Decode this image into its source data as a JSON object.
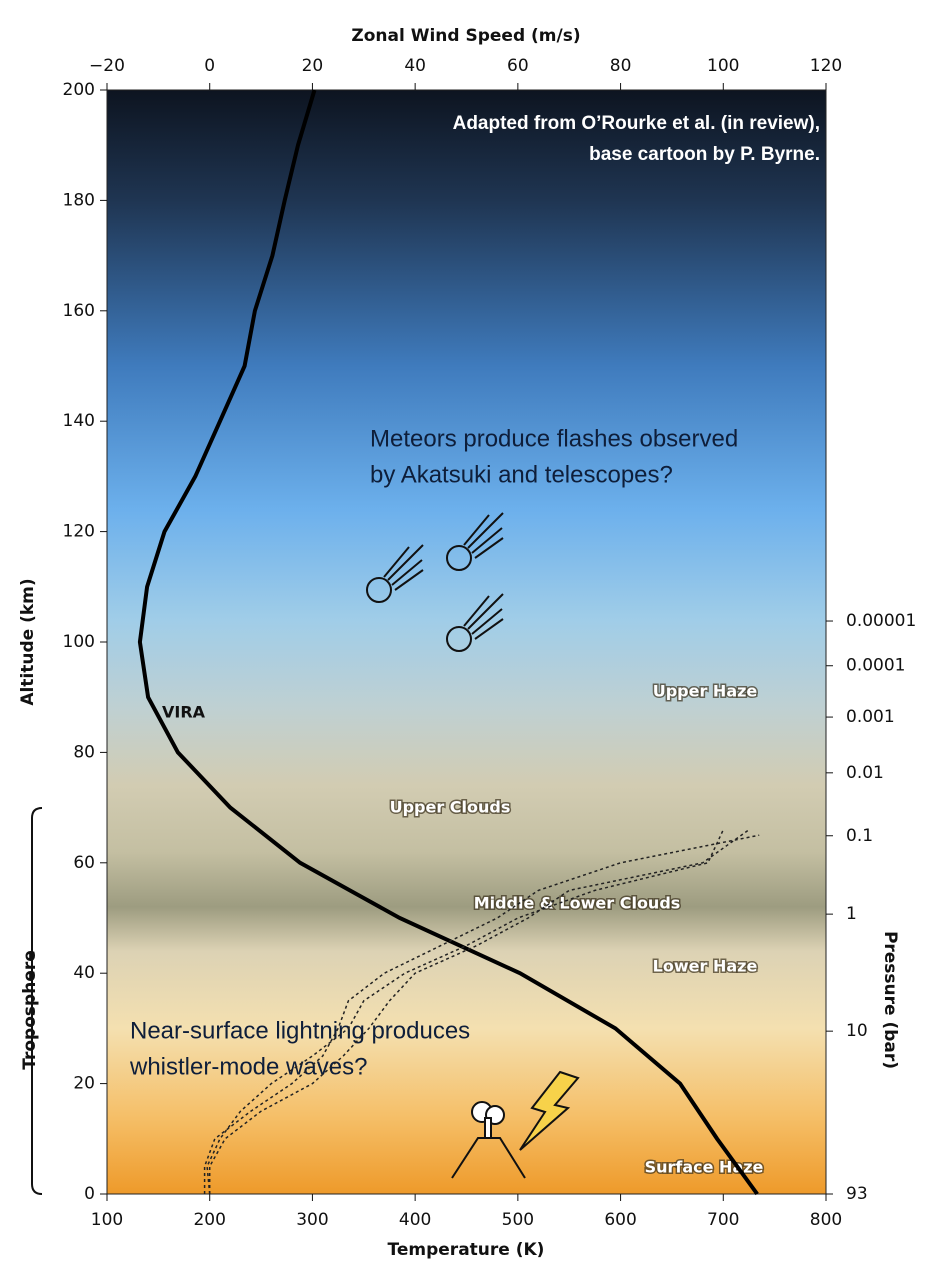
{
  "chart_data": {
    "type": "line",
    "attribution": [
      "Adapted from O’Rourke et al. (in review),",
      "base cartoon by P. Byrne."
    ],
    "xlabel": "Temperature (K)",
    "x2label": "Zonal Wind Speed (m/s)",
    "ylabel": "Altitude (km)",
    "y2label": "Pressure (bar)",
    "xlim": [
      100,
      800
    ],
    "xticks": [
      100,
      200,
      300,
      400,
      500,
      600,
      700,
      800
    ],
    "x2lim": [
      -20,
      120
    ],
    "x2ticks": [
      {
        "value": -20,
        "label": "−20"
      },
      0,
      20,
      40,
      60,
      80,
      100,
      120
    ],
    "ylim": [
      0,
      200
    ],
    "yticks": [
      0,
      20,
      40,
      60,
      80,
      100,
      120,
      140,
      160,
      180,
      200
    ],
    "pressure_ticks": [
      1e-05,
      0.0001,
      0.001,
      0.01,
      0.1,
      1,
      10,
      93
    ],
    "pressure_tick_altitudes": [
      103.8,
      95.7,
      86.4,
      76.3,
      64.9,
      50.7,
      29.5,
      0
    ],
    "series": [
      {
        "name": "VIRA",
        "color": "#000000",
        "axis": "x",
        "style": "solid",
        "x": [
          733,
          694,
          658,
          595,
          502,
          385,
          288,
          220,
          169,
          140,
          132,
          139,
          156,
          186,
          210,
          234,
          244,
          261,
          273,
          286,
          302
        ],
        "y": [
          0,
          10,
          20,
          30,
          40,
          50,
          60,
          70,
          80,
          90,
          100,
          110,
          120,
          130,
          140,
          150,
          160,
          170,
          180,
          190,
          200
        ]
      },
      {
        "color": "#222222",
        "axis": "x2",
        "style": "dotted",
        "x": [
          -1,
          -1,
          1,
          8,
          16,
          22,
          25,
          27,
          34,
          45,
          56,
          64,
          80,
          107
        ],
        "y": [
          0,
          5,
          10,
          15,
          20,
          25,
          30,
          35,
          40,
          45,
          50,
          55,
          60,
          65
        ]
      },
      {
        "color": "#222222",
        "axis": "x2",
        "style": "dotted",
        "x": [
          0,
          -0.5,
          2,
          6,
          12,
          20,
          27,
          30,
          38,
          50,
          60,
          75,
          97,
          100
        ],
        "y": [
          0,
          5,
          10,
          15,
          20,
          25,
          30,
          35,
          40,
          45,
          50,
          55,
          60,
          66
        ]
      },
      {
        "color": "#222222",
        "axis": "x2",
        "style": "dotted",
        "x": [
          0,
          0,
          3,
          10,
          20,
          26,
          31,
          35,
          40,
          52,
          62,
          70,
          96,
          105
        ],
        "y": [
          0,
          5,
          10,
          15,
          20,
          25,
          30,
          35,
          40,
          45,
          50,
          55,
          60,
          66
        ]
      }
    ],
    "region_labels": [
      "Upper Haze",
      "Upper Clouds",
      "Middle & Lower Clouds",
      "Lower Haze",
      "Surface Haze"
    ],
    "troposphere_label": "Troposphere",
    "meteor_note": [
      "Meteors produce flashes observed",
      "by Akatsuki and telescopes?"
    ],
    "lightning_note": [
      "Near-surface lightning produces",
      "whistler-mode waves?"
    ]
  }
}
